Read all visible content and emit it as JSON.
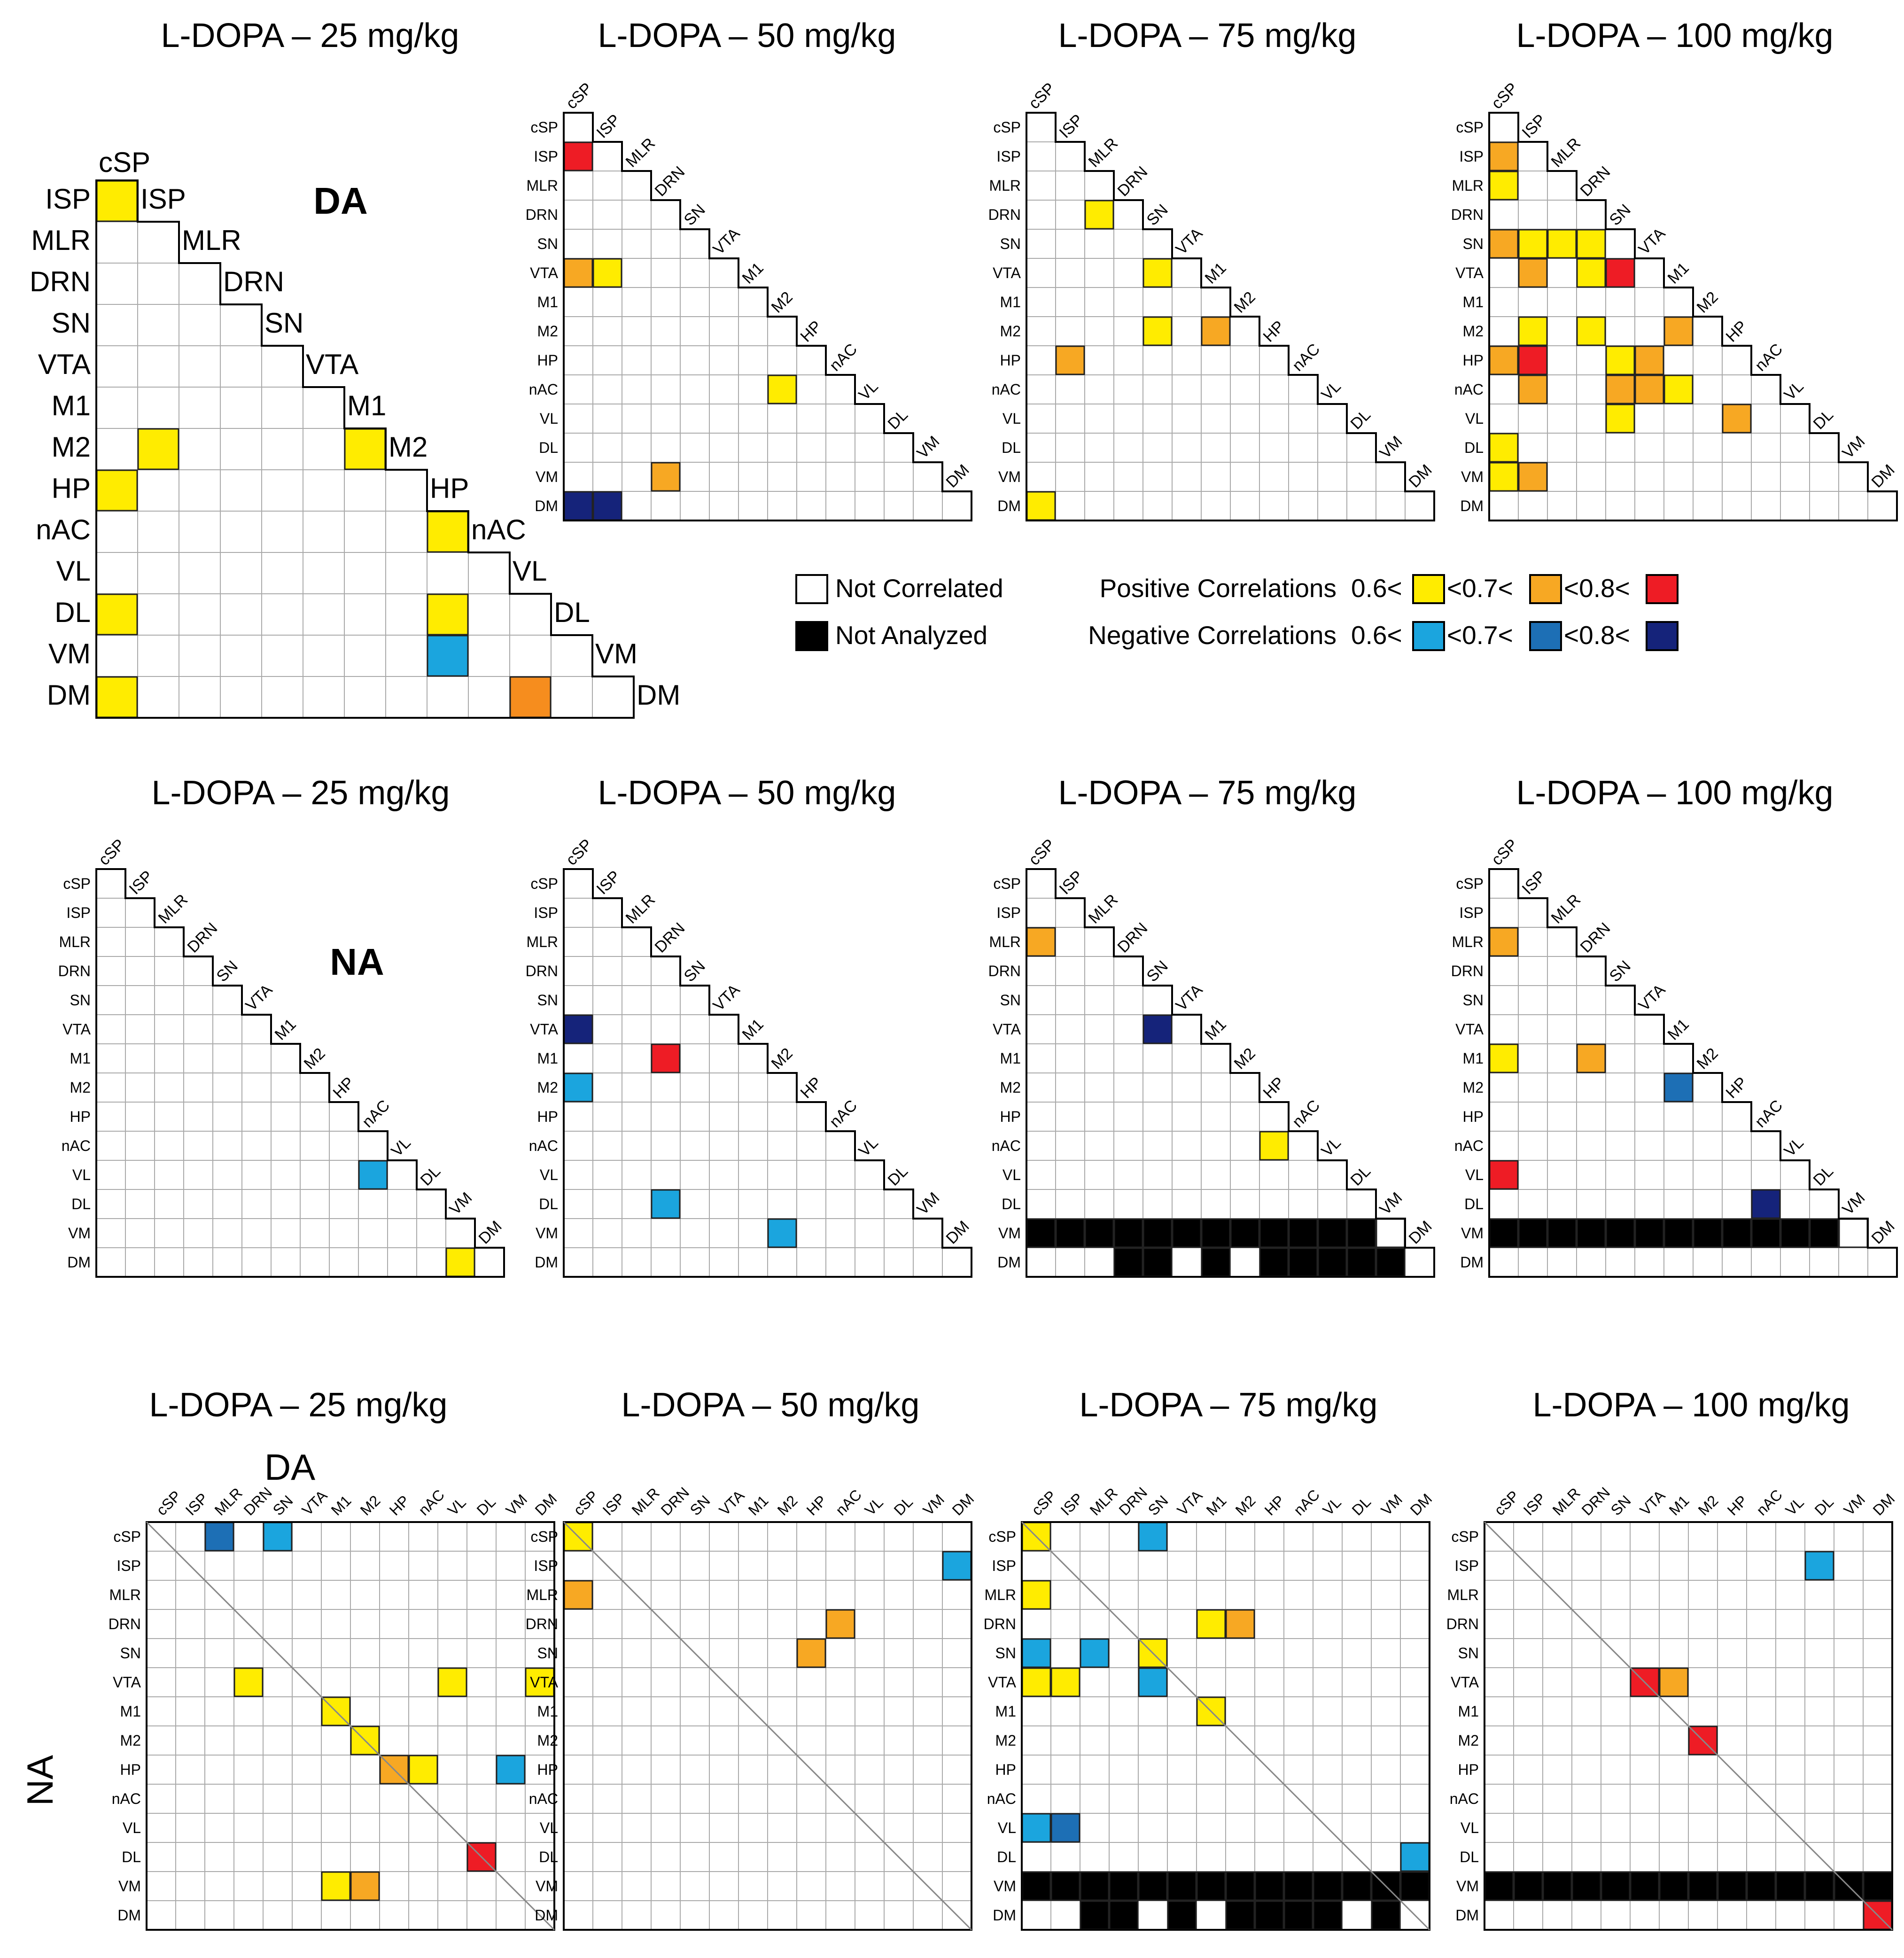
{
  "regions": [
    "cSP",
    "ISP",
    "MLR",
    "DRN",
    "SN",
    "VTA",
    "M1",
    "M2",
    "HP",
    "nAC",
    "VL",
    "DL",
    "VM",
    "DM"
  ],
  "labels": {
    "da": "DA",
    "na": "NA",
    "cross_col_axis": "DA",
    "cross_row_axis": "NA"
  },
  "legend": {
    "not_correlated": "Not Correlated",
    "not_analyzed": "Not Analyzed",
    "positive": "Positive Correlations",
    "negative": "Negative Correlations",
    "t1": "0.6<",
    "t2": "<0.7<",
    "t3": "<0.8<"
  },
  "colors": {
    "pos1": "#FFEC00",
    "pos2": "#F7A823",
    "pos3": "#EE1C25",
    "neg1": "#1BA5DE",
    "neg2": "#1D6FB5",
    "neg3": "#15237A",
    "na": "#000000",
    "fill_orange": "#F68D1E"
  },
  "chart_data": [
    {
      "type": "heatmap",
      "kind": "triangle",
      "group": "DA",
      "title": "L-DOPA – 25 mg/kg",
      "cells": [
        [
          "ISP",
          "cSP",
          "pos1"
        ],
        [
          "M2",
          "ISP",
          "pos1"
        ],
        [
          "M2",
          "M1",
          "pos1"
        ],
        [
          "HP",
          "cSP",
          "pos1"
        ],
        [
          "nAC",
          "HP",
          "pos1"
        ],
        [
          "DL",
          "cSP",
          "pos1"
        ],
        [
          "DL",
          "HP",
          "pos1"
        ],
        [
          "VM",
          "HP",
          "neg1"
        ],
        [
          "DM",
          "cSP",
          "pos1"
        ],
        [
          "DM",
          "VL",
          "fill_orange"
        ]
      ]
    },
    {
      "type": "heatmap",
      "kind": "triangle",
      "group": "DA",
      "title": "L-DOPA – 50 mg/kg",
      "cells": [
        [
          "ISP",
          "cSP",
          "pos3"
        ],
        [
          "VTA",
          "cSP",
          "pos2"
        ],
        [
          "VTA",
          "ISP",
          "pos1"
        ],
        [
          "nAC",
          "M2",
          "pos1"
        ],
        [
          "VM",
          "DRN",
          "pos2"
        ],
        [
          "DM",
          "cSP",
          "neg3"
        ],
        [
          "DM",
          "ISP",
          "neg3"
        ]
      ]
    },
    {
      "type": "heatmap",
      "kind": "triangle",
      "group": "DA",
      "title": "L-DOPA – 75 mg/kg",
      "cells": [
        [
          "DRN",
          "MLR",
          "pos1"
        ],
        [
          "VTA",
          "SN",
          "pos1"
        ],
        [
          "M2",
          "SN",
          "pos1"
        ],
        [
          "M2",
          "M1",
          "pos2"
        ],
        [
          "HP",
          "ISP",
          "pos2"
        ],
        [
          "DM",
          "cSP",
          "pos1"
        ]
      ]
    },
    {
      "type": "heatmap",
      "kind": "triangle",
      "group": "DA",
      "title": "L-DOPA – 100 mg/kg",
      "cells": [
        [
          "ISP",
          "cSP",
          "pos2"
        ],
        [
          "MLR",
          "cSP",
          "pos1"
        ],
        [
          "SN",
          "cSP",
          "pos2"
        ],
        [
          "SN",
          "ISP",
          "pos1"
        ],
        [
          "SN",
          "MLR",
          "pos1"
        ],
        [
          "SN",
          "DRN",
          "pos1"
        ],
        [
          "VTA",
          "ISP",
          "pos2"
        ],
        [
          "VTA",
          "DRN",
          "pos1"
        ],
        [
          "VTA",
          "SN",
          "pos3"
        ],
        [
          "M2",
          "ISP",
          "pos1"
        ],
        [
          "M2",
          "DRN",
          "pos1"
        ],
        [
          "M2",
          "M1",
          "pos2"
        ],
        [
          "HP",
          "cSP",
          "pos2"
        ],
        [
          "HP",
          "ISP",
          "pos3"
        ],
        [
          "HP",
          "SN",
          "pos1"
        ],
        [
          "HP",
          "VTA",
          "pos2"
        ],
        [
          "nAC",
          "ISP",
          "pos2"
        ],
        [
          "nAC",
          "SN",
          "pos2"
        ],
        [
          "nAC",
          "VTA",
          "pos2"
        ],
        [
          "nAC",
          "M1",
          "pos1"
        ],
        [
          "VL",
          "SN",
          "pos1"
        ],
        [
          "VL",
          "HP",
          "pos2"
        ],
        [
          "DL",
          "cSP",
          "pos1"
        ],
        [
          "VM",
          "cSP",
          "pos1"
        ],
        [
          "VM",
          "ISP",
          "pos2"
        ]
      ]
    },
    {
      "type": "heatmap",
      "kind": "triangle",
      "group": "NA",
      "title": "L-DOPA – 25 mg/kg",
      "cells": [
        [
          "VL",
          "nAC",
          "neg1"
        ],
        [
          "DM",
          "VM",
          "pos1"
        ]
      ]
    },
    {
      "type": "heatmap",
      "kind": "triangle",
      "group": "NA",
      "title": "L-DOPA – 50 mg/kg",
      "cells": [
        [
          "VTA",
          "cSP",
          "neg3"
        ],
        [
          "M1",
          "DRN",
          "pos3"
        ],
        [
          "M2",
          "cSP",
          "neg1"
        ],
        [
          "DL",
          "DRN",
          "neg1"
        ],
        [
          "VM",
          "M2",
          "neg1"
        ]
      ]
    },
    {
      "type": "heatmap",
      "kind": "triangle",
      "group": "NA",
      "title": "L-DOPA – 75 mg/kg",
      "na_row": "VM",
      "na_dm_cols": [
        "DRN",
        "SN",
        "M1",
        "HP",
        "nAC",
        "VL",
        "DL",
        "VM"
      ],
      "cells": [
        [
          "MLR",
          "cSP",
          "pos2"
        ],
        [
          "VTA",
          "SN",
          "neg3"
        ],
        [
          "nAC",
          "HP",
          "pos1"
        ]
      ]
    },
    {
      "type": "heatmap",
      "kind": "triangle",
      "group": "NA",
      "title": "L-DOPA – 100 mg/kg",
      "na_row": "VM",
      "na_dm_cols": [],
      "cells": [
        [
          "MLR",
          "cSP",
          "pos2"
        ],
        [
          "M1",
          "cSP",
          "pos1"
        ],
        [
          "M1",
          "DRN",
          "pos2"
        ],
        [
          "M2",
          "M1",
          "neg2"
        ],
        [
          "VL",
          "cSP",
          "pos3"
        ],
        [
          "DL",
          "nAC",
          "neg3"
        ]
      ]
    },
    {
      "type": "heatmap",
      "kind": "square",
      "group": "NA x DA",
      "title": "L-DOPA – 25 mg/kg",
      "cells": [
        [
          "cSP",
          "MLR",
          "neg2"
        ],
        [
          "cSP",
          "SN",
          "neg1"
        ],
        [
          "VTA",
          "DRN",
          "pos1"
        ],
        [
          "VTA",
          "VL",
          "pos1"
        ],
        [
          "VTA",
          "DM",
          "pos1"
        ],
        [
          "M1",
          "M1",
          "pos1"
        ],
        [
          "M2",
          "M2",
          "pos1"
        ],
        [
          "HP",
          "HP",
          "pos2"
        ],
        [
          "HP",
          "nAC",
          "pos1"
        ],
        [
          "HP",
          "VM",
          "neg1"
        ],
        [
          "DL",
          "DL",
          "pos3"
        ],
        [
          "VM",
          "M1",
          "pos1"
        ],
        [
          "VM",
          "M2",
          "pos2"
        ]
      ]
    },
    {
      "type": "heatmap",
      "kind": "square",
      "group": "NA x DA",
      "title": "L-DOPA – 50 mg/kg",
      "cells": [
        [
          "cSP",
          "cSP",
          "pos1"
        ],
        [
          "ISP",
          "DM",
          "neg1"
        ],
        [
          "MLR",
          "cSP",
          "pos2"
        ],
        [
          "DRN",
          "nAC",
          "pos2"
        ],
        [
          "SN",
          "HP",
          "pos2"
        ]
      ]
    },
    {
      "type": "heatmap",
      "kind": "square",
      "group": "NA x DA",
      "title": "L-DOPA – 75 mg/kg",
      "na_row": "VM",
      "na_dm_cols": [
        "MLR",
        "DRN",
        "VTA",
        "M2",
        "HP",
        "nAC",
        "VL",
        "VM"
      ],
      "cells": [
        [
          "cSP",
          "cSP",
          "pos1"
        ],
        [
          "cSP",
          "SN",
          "neg1"
        ],
        [
          "MLR",
          "cSP",
          "pos1"
        ],
        [
          "DRN",
          "M1",
          "pos1"
        ],
        [
          "DRN",
          "M2",
          "pos2"
        ],
        [
          "SN",
          "cSP",
          "neg1"
        ],
        [
          "SN",
          "MLR",
          "neg1"
        ],
        [
          "SN",
          "SN",
          "pos1"
        ],
        [
          "VTA",
          "cSP",
          "pos1"
        ],
        [
          "VTA",
          "ISP",
          "pos1"
        ],
        [
          "VTA",
          "SN",
          "neg1"
        ],
        [
          "M1",
          "M1",
          "pos1"
        ],
        [
          "VL",
          "cSP",
          "neg1"
        ],
        [
          "VL",
          "ISP",
          "neg2"
        ],
        [
          "DL",
          "DM",
          "neg1"
        ]
      ]
    },
    {
      "type": "heatmap",
      "kind": "square",
      "group": "NA x DA",
      "title": "L-DOPA – 100 mg/kg",
      "na_row": "VM",
      "na_dm_cols": [],
      "cells": [
        [
          "ISP",
          "DL",
          "neg1"
        ],
        [
          "VTA",
          "VTA",
          "pos3"
        ],
        [
          "VTA",
          "M1",
          "pos2"
        ],
        [
          "M2",
          "M2",
          "pos3"
        ],
        [
          "DM",
          "DM",
          "pos3"
        ]
      ]
    }
  ]
}
